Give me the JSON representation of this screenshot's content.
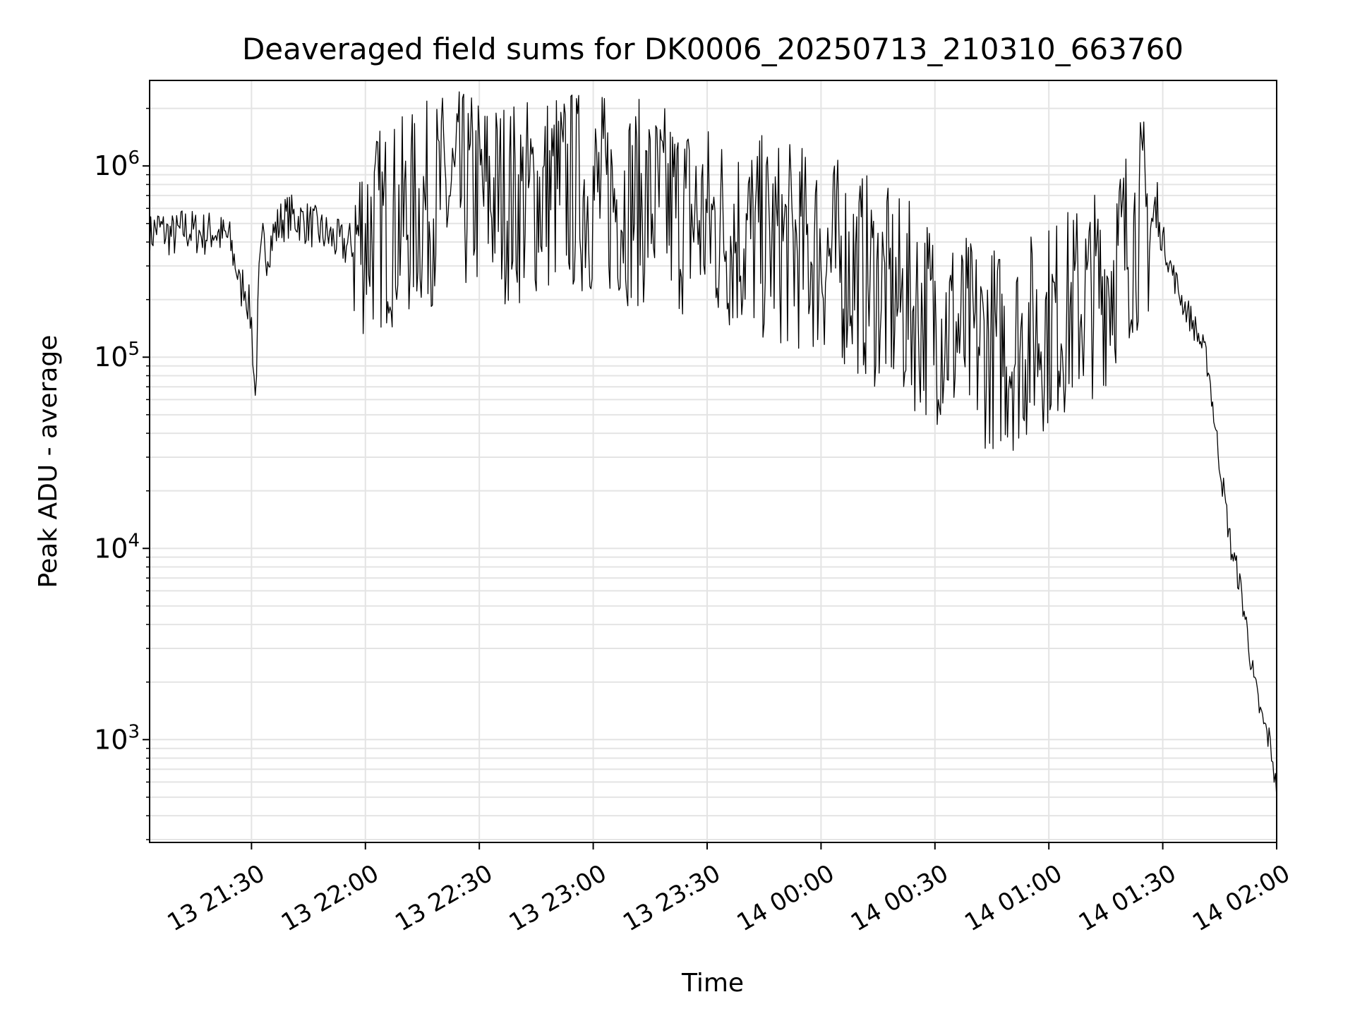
{
  "chart_data": {
    "type": "line",
    "title": "Deaveraged field sums for DK0006_20250713_210310_663760",
    "xlabel": "Time",
    "ylabel": "Peak ADU - average",
    "xlim": [
      "2025-07-13 21:03:10",
      "2025-07-14 02:00:00"
    ],
    "ylim": [
      290,
      2800000
    ],
    "yscale": "log",
    "grid": true,
    "x_ticks": [
      "13 21:30",
      "13 22:00",
      "13 22:30",
      "13 23:00",
      "13 23:30",
      "14 00:00",
      "14 00:30",
      "14 01:00",
      "14 01:30",
      "14 02:00"
    ],
    "y_ticks": [
      {
        "base": "10",
        "exp": "3",
        "value": 1000
      },
      {
        "base": "10",
        "exp": "4",
        "value": 10000
      },
      {
        "base": "10",
        "exp": "5",
        "value": 100000
      },
      {
        "base": "10",
        "exp": "6",
        "value": 1000000
      }
    ],
    "series": [
      {
        "color": "#000000",
        "x": [
          "2025-07-13 21:03:10",
          "2025-07-13 21:05",
          "2025-07-13 21:08",
          "2025-07-13 21:10",
          "2025-07-13 21:12",
          "2025-07-13 21:15",
          "2025-07-13 21:18",
          "2025-07-13 21:20",
          "2025-07-13 21:22",
          "2025-07-13 21:24",
          "2025-07-13 21:26",
          "2025-07-13 21:27",
          "2025-07-13 21:28",
          "2025-07-13 21:29",
          "2025-07-13 21:30",
          "2025-07-13 21:31",
          "2025-07-13 21:32",
          "2025-07-13 21:33",
          "2025-07-13 21:34",
          "2025-07-13 21:36",
          "2025-07-13 21:38",
          "2025-07-13 21:40",
          "2025-07-13 21:45",
          "2025-07-13 21:50",
          "2025-07-13 21:55",
          "2025-07-13 22:00",
          "2025-07-13 22:10",
          "2025-07-13 22:20",
          "2025-07-13 22:30",
          "2025-07-13 22:40",
          "2025-07-13 22:50",
          "2025-07-13 23:00",
          "2025-07-13 23:10",
          "2025-07-13 23:20",
          "2025-07-13 23:30",
          "2025-07-13 23:40",
          "2025-07-13 23:50",
          "2025-07-14 00:00",
          "2025-07-14 00:10",
          "2025-07-14 00:20",
          "2025-07-14 00:30",
          "2025-07-14 00:40",
          "2025-07-14 00:50",
          "2025-07-14 01:00",
          "2025-07-14 01:10",
          "2025-07-14 01:15",
          "2025-07-14 01:20",
          "2025-07-14 01:25",
          "2025-07-14 01:28",
          "2025-07-14 01:30",
          "2025-07-14 01:32",
          "2025-07-14 01:35",
          "2025-07-14 01:38",
          "2025-07-14 01:40",
          "2025-07-14 01:42",
          "2025-07-14 01:44",
          "2025-07-14 01:46",
          "2025-07-14 01:48",
          "2025-07-14 01:50",
          "2025-07-14 01:52",
          "2025-07-14 01:54",
          "2025-07-14 01:56",
          "2025-07-14 01:58",
          "2025-07-14 01:59",
          "2025-07-14 02:00"
        ],
        "y": [
          420000,
          480000,
          440000,
          430000,
          470000,
          450000,
          440000,
          460000,
          430000,
          420000,
          300000,
          220000,
          250000,
          200000,
          150000,
          60000,
          250000,
          400000,
          350000,
          450000,
          520000,
          550000,
          500000,
          430000,
          380000,
          450000,
          520000,
          700000,
          720000,
          650000,
          760000,
          720000,
          650000,
          600000,
          500000,
          430000,
          390000,
          350000,
          280000,
          200000,
          160000,
          120000,
          110000,
          150000,
          200000,
          250000,
          380000,
          550000,
          480000,
          420000,
          300000,
          200000,
          150000,
          120000,
          90000,
          40000,
          20000,
          10000,
          7000,
          4000,
          2000,
          1300,
          1000,
          800,
          500
        ]
      }
    ]
  }
}
